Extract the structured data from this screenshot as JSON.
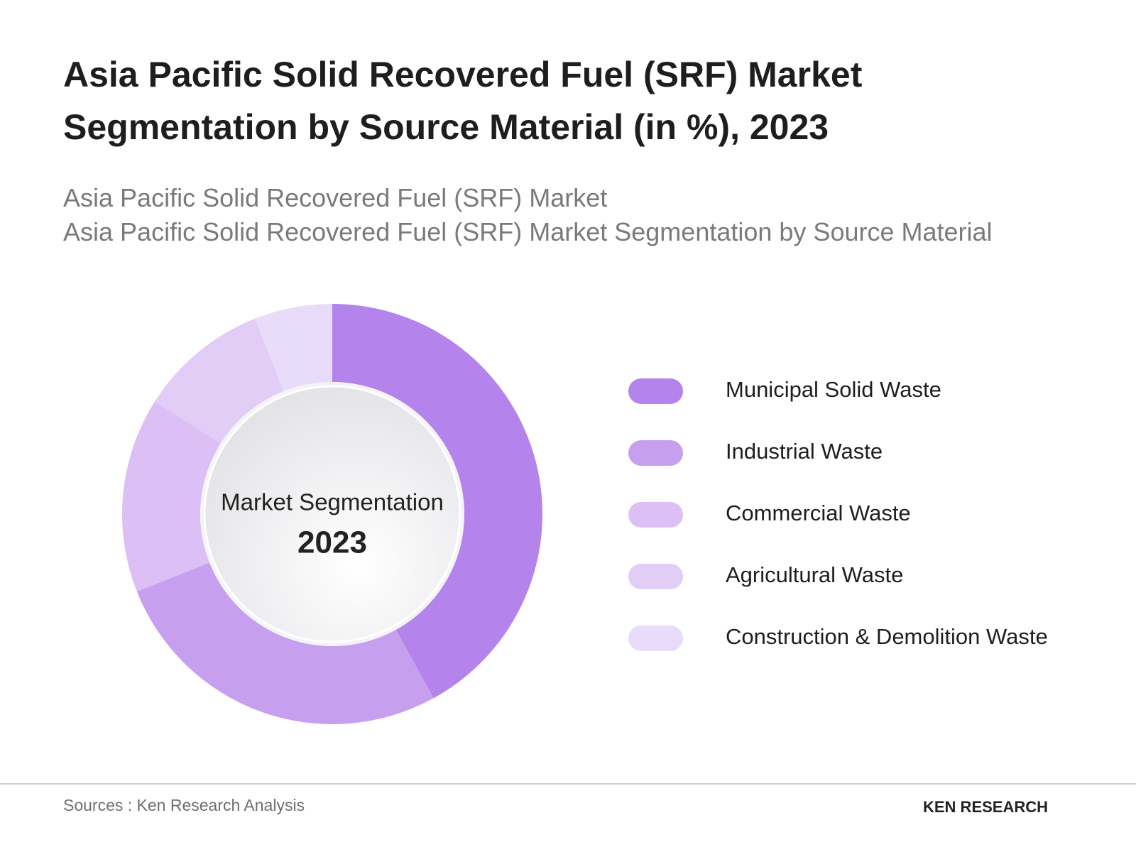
{
  "chart_data": {
    "type": "pie",
    "title": "Asia Pacific Solid Recovered Fuel (SRF) Market Segmentation by Source Material (in %), 2023",
    "subtitle": [
      "Asia Pacific Solid Recovered Fuel (SRF) Market",
      "Asia Pacific Solid Recovered Fuel (SRF) Market Segmentation by Source Material"
    ],
    "center_label": "Market Segmentation",
    "center_year": "2023",
    "categories": [
      "Municipal Solid Waste",
      "Industrial Waste",
      "Commercial Waste",
      "Agricultural Waste",
      "Construction & Demolition Waste"
    ],
    "values": [
      42,
      27,
      15,
      10,
      6
    ],
    "colors": [
      "#b484ec",
      "#c6a0ef",
      "#dbbff5",
      "#e2cdf7",
      "#e9dbfa"
    ],
    "source": "Sources : Ken Research Analysis",
    "logo": "KEN RESEARCH"
  }
}
